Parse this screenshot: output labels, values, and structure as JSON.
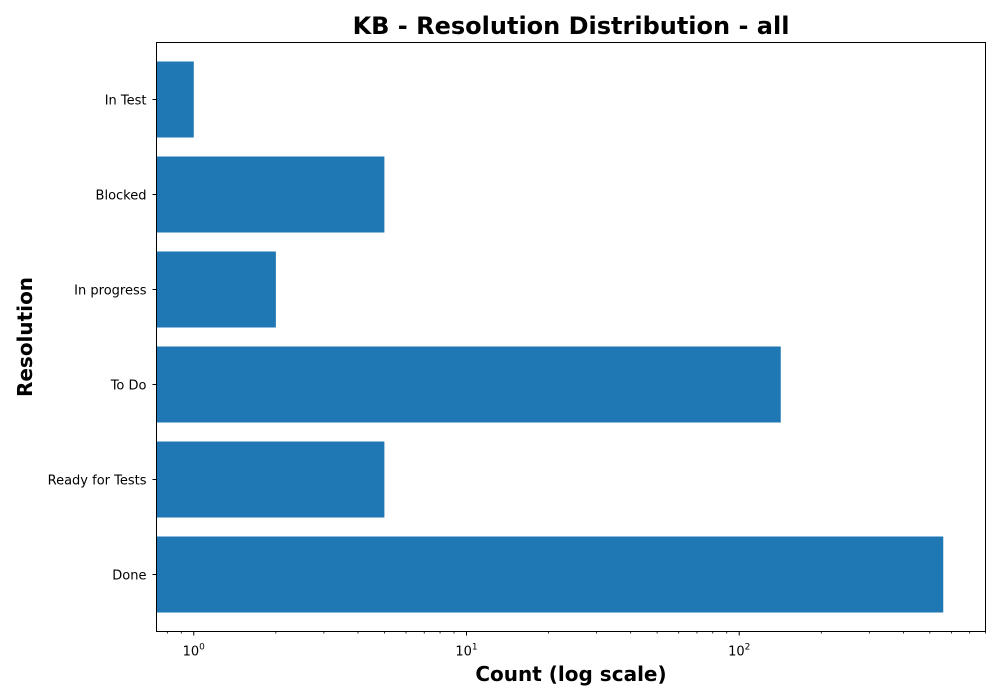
{
  "chart_data": {
    "type": "bar",
    "orientation": "horizontal",
    "title": "KB - Resolution Distribution - all",
    "xlabel": "Count (log scale)",
    "ylabel": "Resolution",
    "xscale": "log",
    "xlim": [
      0.73,
      800
    ],
    "categories": [
      "Done",
      "Ready for Tests",
      "To Do",
      "In progress",
      "Blocked",
      "In Test"
    ],
    "values": [
      560,
      5,
      142,
      2,
      5,
      1
    ],
    "x_ticks": [
      {
        "value": 1,
        "base": "10",
        "exp": "0"
      },
      {
        "value": 10,
        "base": "10",
        "exp": "1"
      },
      {
        "value": 100,
        "base": "10",
        "exp": "2"
      }
    ],
    "bar_color": "#1f77b4",
    "grid": false,
    "legend": "none"
  }
}
